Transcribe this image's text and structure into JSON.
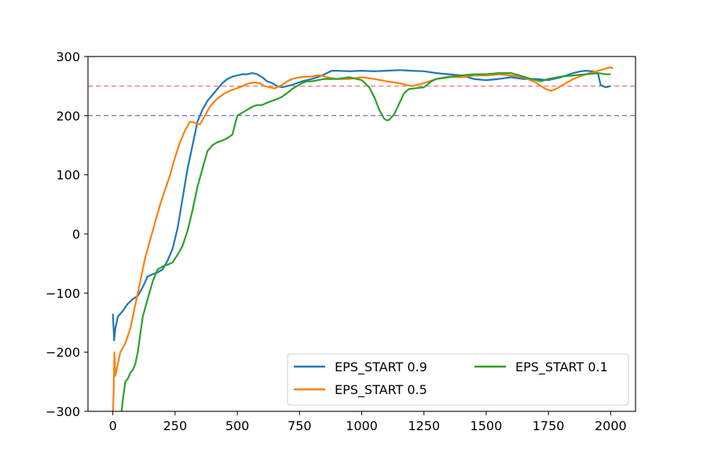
{
  "chart_data": {
    "type": "line",
    "title": "",
    "xlabel": "",
    "ylabel": "",
    "xlim": [
      -100,
      2100
    ],
    "ylim": [
      -300,
      300
    ],
    "x_ticks": [
      0,
      250,
      500,
      750,
      1000,
      1250,
      1500,
      1750,
      2000
    ],
    "y_ticks": [
      -300,
      -200,
      -100,
      0,
      100,
      200,
      300
    ],
    "x_tick_labels": [
      "0",
      "250",
      "500",
      "750",
      "1000",
      "1250",
      "1500",
      "1750",
      "2000"
    ],
    "y_tick_labels": [
      "−300",
      "−200",
      "−100",
      "0",
      "100",
      "200",
      "300"
    ],
    "grid": false,
    "legend_position": "lower-right",
    "reference_lines": [
      {
        "y": 250,
        "color": "#f08080",
        "style": "dashed"
      },
      {
        "y": 200,
        "color": "#7b7bcf",
        "style": "dashed"
      }
    ],
    "series": [
      {
        "name": "EPS_START 0.9",
        "color": "#1f77b4",
        "points": [
          [
            0,
            -135
          ],
          [
            5,
            -180
          ],
          [
            10,
            -160
          ],
          [
            20,
            -140
          ],
          [
            40,
            -130
          ],
          [
            60,
            -118
          ],
          [
            80,
            -110
          ],
          [
            100,
            -105
          ],
          [
            120,
            -90
          ],
          [
            140,
            -72
          ],
          [
            160,
            -68
          ],
          [
            180,
            -65
          ],
          [
            200,
            -60
          ],
          [
            220,
            -45
          ],
          [
            240,
            -25
          ],
          [
            260,
            10
          ],
          [
            280,
            60
          ],
          [
            300,
            110
          ],
          [
            320,
            150
          ],
          [
            340,
            190
          ],
          [
            360,
            210
          ],
          [
            380,
            225
          ],
          [
            400,
            235
          ],
          [
            420,
            245
          ],
          [
            440,
            255
          ],
          [
            460,
            262
          ],
          [
            480,
            266
          ],
          [
            500,
            268
          ],
          [
            520,
            270
          ],
          [
            540,
            270
          ],
          [
            560,
            272
          ],
          [
            580,
            270
          ],
          [
            600,
            265
          ],
          [
            620,
            258
          ],
          [
            640,
            255
          ],
          [
            660,
            250
          ],
          [
            680,
            248
          ],
          [
            700,
            250
          ],
          [
            720,
            252
          ],
          [
            740,
            255
          ],
          [
            760,
            258
          ],
          [
            780,
            260
          ],
          [
            800,
            262
          ],
          [
            820,
            265
          ],
          [
            840,
            268
          ],
          [
            860,
            272
          ],
          [
            880,
            276
          ],
          [
            900,
            276
          ],
          [
            950,
            275
          ],
          [
            1000,
            276
          ],
          [
            1050,
            275
          ],
          [
            1100,
            276
          ],
          [
            1150,
            277
          ],
          [
            1200,
            276
          ],
          [
            1250,
            275
          ],
          [
            1300,
            272
          ],
          [
            1350,
            270
          ],
          [
            1400,
            268
          ],
          [
            1450,
            262
          ],
          [
            1500,
            260
          ],
          [
            1550,
            262
          ],
          [
            1600,
            265
          ],
          [
            1650,
            262
          ],
          [
            1700,
            262
          ],
          [
            1750,
            260
          ],
          [
            1800,
            265
          ],
          [
            1850,
            272
          ],
          [
            1880,
            275
          ],
          [
            1900,
            276
          ],
          [
            1930,
            275
          ],
          [
            1950,
            270
          ],
          [
            1960,
            252
          ],
          [
            1980,
            248
          ],
          [
            2000,
            250
          ]
        ]
      },
      {
        "name": "EPS_START 0.5",
        "color": "#ff7f0e",
        "points": [
          [
            0,
            -300
          ],
          [
            3,
            -270
          ],
          [
            6,
            -200
          ],
          [
            10,
            -240
          ],
          [
            20,
            -220
          ],
          [
            30,
            -200
          ],
          [
            50,
            -185
          ],
          [
            70,
            -160
          ],
          [
            90,
            -120
          ],
          [
            110,
            -80
          ],
          [
            130,
            -40
          ],
          [
            150,
            -10
          ],
          [
            170,
            20
          ],
          [
            190,
            50
          ],
          [
            210,
            75
          ],
          [
            230,
            100
          ],
          [
            250,
            130
          ],
          [
            270,
            155
          ],
          [
            290,
            175
          ],
          [
            310,
            190
          ],
          [
            330,
            188
          ],
          [
            350,
            185
          ],
          [
            370,
            200
          ],
          [
            390,
            215
          ],
          [
            410,
            225
          ],
          [
            430,
            232
          ],
          [
            450,
            238
          ],
          [
            470,
            242
          ],
          [
            490,
            245
          ],
          [
            510,
            248
          ],
          [
            530,
            252
          ],
          [
            550,
            255
          ],
          [
            570,
            256
          ],
          [
            590,
            255
          ],
          [
            610,
            250
          ],
          [
            630,
            248
          ],
          [
            650,
            246
          ],
          [
            680,
            252
          ],
          [
            700,
            258
          ],
          [
            720,
            262
          ],
          [
            750,
            265
          ],
          [
            780,
            266
          ],
          [
            800,
            266
          ],
          [
            820,
            268
          ],
          [
            840,
            268
          ],
          [
            860,
            265
          ],
          [
            900,
            262
          ],
          [
            950,
            262
          ],
          [
            1000,
            265
          ],
          [
            1050,
            262
          ],
          [
            1100,
            258
          ],
          [
            1150,
            255
          ],
          [
            1200,
            250
          ],
          [
            1250,
            255
          ],
          [
            1300,
            262
          ],
          [
            1350,
            266
          ],
          [
            1400,
            265
          ],
          [
            1450,
            268
          ],
          [
            1500,
            268
          ],
          [
            1550,
            270
          ],
          [
            1600,
            268
          ],
          [
            1650,
            265
          ],
          [
            1700,
            256
          ],
          [
            1720,
            250
          ],
          [
            1740,
            245
          ],
          [
            1760,
            242
          ],
          [
            1780,
            245
          ],
          [
            1800,
            250
          ],
          [
            1850,
            262
          ],
          [
            1900,
            270
          ],
          [
            1950,
            276
          ],
          [
            2000,
            282
          ],
          [
            2010,
            280
          ]
        ]
      },
      {
        "name": "EPS_START 0.1",
        "color": "#2ca02c",
        "points": [
          [
            35,
            -300
          ],
          [
            40,
            -280
          ],
          [
            50,
            -250
          ],
          [
            60,
            -245
          ],
          [
            70,
            -235
          ],
          [
            80,
            -230
          ],
          [
            90,
            -220
          ],
          [
            100,
            -200
          ],
          [
            110,
            -170
          ],
          [
            120,
            -140
          ],
          [
            140,
            -110
          ],
          [
            160,
            -80
          ],
          [
            180,
            -60
          ],
          [
            200,
            -55
          ],
          [
            220,
            -52
          ],
          [
            240,
            -48
          ],
          [
            260,
            -35
          ],
          [
            280,
            -20
          ],
          [
            300,
            5
          ],
          [
            320,
            40
          ],
          [
            340,
            80
          ],
          [
            360,
            110
          ],
          [
            380,
            140
          ],
          [
            400,
            150
          ],
          [
            420,
            155
          ],
          [
            440,
            158
          ],
          [
            460,
            162
          ],
          [
            480,
            168
          ],
          [
            500,
            200
          ],
          [
            520,
            205
          ],
          [
            540,
            210
          ],
          [
            560,
            215
          ],
          [
            580,
            218
          ],
          [
            600,
            218
          ],
          [
            620,
            222
          ],
          [
            640,
            225
          ],
          [
            660,
            228
          ],
          [
            680,
            232
          ],
          [
            700,
            238
          ],
          [
            720,
            245
          ],
          [
            740,
            250
          ],
          [
            760,
            255
          ],
          [
            780,
            258
          ],
          [
            800,
            258
          ],
          [
            850,
            262
          ],
          [
            900,
            262
          ],
          [
            950,
            265
          ],
          [
            1000,
            260
          ],
          [
            1030,
            248
          ],
          [
            1050,
            232
          ],
          [
            1070,
            210
          ],
          [
            1090,
            195
          ],
          [
            1100,
            192
          ],
          [
            1110,
            193
          ],
          [
            1130,
            202
          ],
          [
            1150,
            220
          ],
          [
            1170,
            238
          ],
          [
            1190,
            245
          ],
          [
            1210,
            246
          ],
          [
            1250,
            248
          ],
          [
            1280,
            258
          ],
          [
            1300,
            262
          ],
          [
            1350,
            265
          ],
          [
            1400,
            268
          ],
          [
            1450,
            270
          ],
          [
            1500,
            270
          ],
          [
            1550,
            272
          ],
          [
            1600,
            272
          ],
          [
            1650,
            266
          ],
          [
            1680,
            262
          ],
          [
            1700,
            260
          ],
          [
            1720,
            258
          ],
          [
            1750,
            262
          ],
          [
            1800,
            266
          ],
          [
            1850,
            268
          ],
          [
            1900,
            270
          ],
          [
            1950,
            272
          ],
          [
            1980,
            270
          ],
          [
            2000,
            270
          ]
        ]
      }
    ]
  }
}
